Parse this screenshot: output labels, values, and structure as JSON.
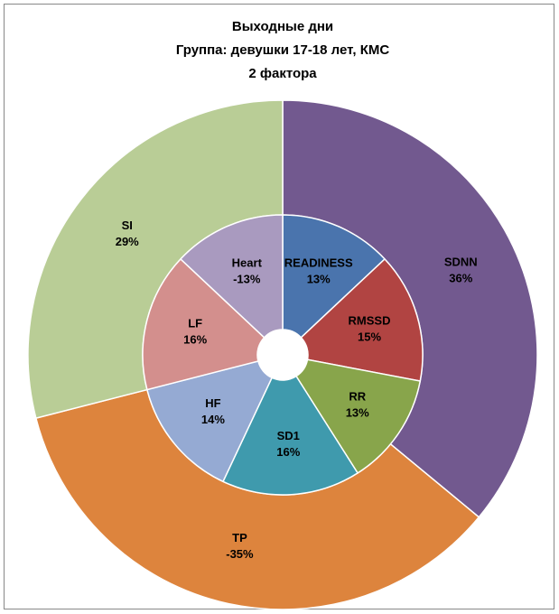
{
  "chart_data": {
    "type": "donut",
    "title": [
      "Выходные дни",
      "Группа: девушки 17-18 лет, КМС",
      "2 фактора"
    ],
    "series": [
      {
        "categories": [
          "SDNN",
          "TP",
          "SI"
        ],
        "values": [
          36,
          -35,
          29
        ],
        "value_labels": [
          "36%",
          "-35%",
          "29%"
        ],
        "colors": [
          "#72598f",
          "#dd843d",
          "#b9cd96"
        ]
      },
      {
        "categories": [
          "READINESS",
          "RMSSD",
          "RR",
          "SD1",
          "HF",
          "LF",
          "Heart"
        ],
        "values": [
          13,
          15,
          13,
          16,
          14,
          16,
          -13
        ],
        "value_labels": [
          "13%",
          "15%",
          "13%",
          "16%",
          "14%",
          "16%",
          "-13%"
        ],
        "colors": [
          "#4a74ad",
          "#b14442",
          "#88a54b",
          "#3f9aad",
          "#95aad3",
          "#d38f8d",
          "#a99abf"
        ]
      }
    ]
  }
}
